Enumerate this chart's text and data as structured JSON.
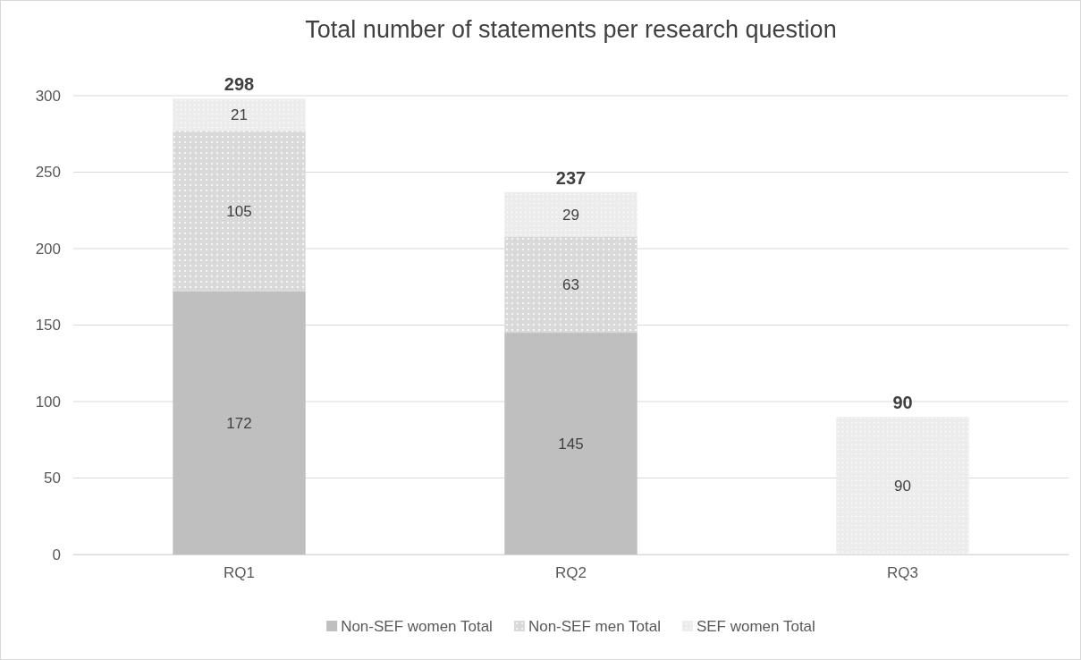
{
  "chart_data": {
    "type": "bar",
    "title": "Total number of statements per research question",
    "categories": [
      "RQ1",
      "RQ2",
      "RQ3"
    ],
    "stacked": true,
    "series": [
      {
        "name": "Non-SEF women Total",
        "color": "#bfbfbf",
        "values": [
          172,
          145,
          null
        ]
      },
      {
        "name": "Non-SEF men Total",
        "color": "#d9d9d9",
        "values": [
          105,
          63,
          null
        ]
      },
      {
        "name": "SEF women Total",
        "color": "#ececec",
        "values": [
          21,
          29,
          90
        ]
      }
    ],
    "ylim": [
      0,
      300
    ],
    "yticks": [
      0,
      50,
      100,
      150,
      200,
      250,
      300
    ],
    "grid": "y",
    "legend": "bottom",
    "data_labels": true,
    "totals": [
      "298",
      "237",
      "90"
    ]
  }
}
